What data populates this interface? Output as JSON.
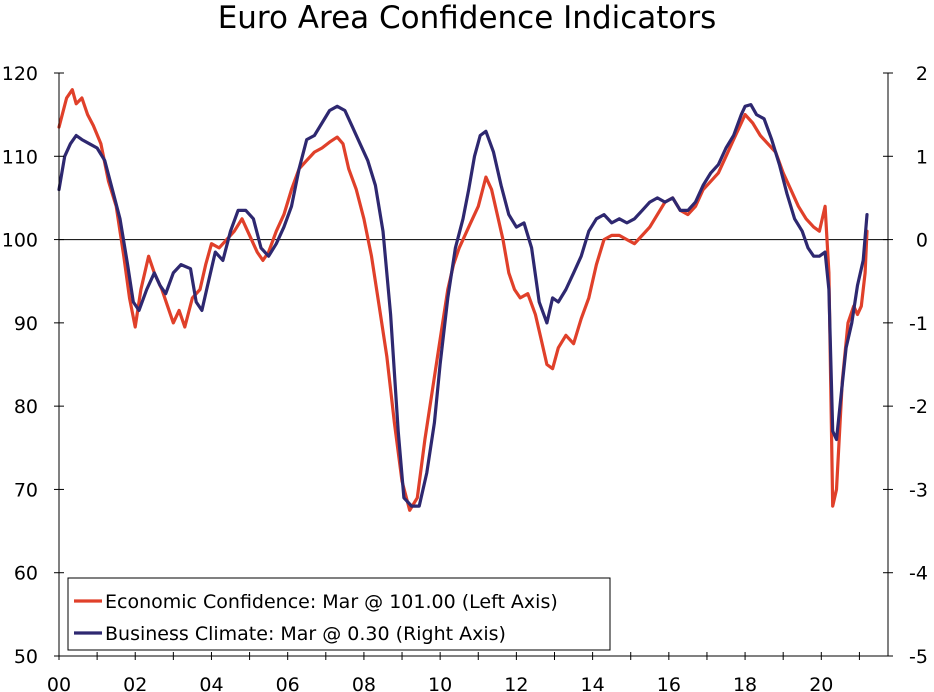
{
  "chart_data": {
    "type": "line",
    "title": "Euro Area Confidence Indicators",
    "xlabel": "",
    "ylabel": "",
    "x_range": [
      2000,
      2021.75
    ],
    "x_ticks": [
      {
        "x": 2000,
        "label": "00"
      },
      {
        "x": 2002,
        "label": "02"
      },
      {
        "x": 2004,
        "label": "04"
      },
      {
        "x": 2006,
        "label": "06"
      },
      {
        "x": 2008,
        "label": "08"
      },
      {
        "x": 2010,
        "label": "10"
      },
      {
        "x": 2012,
        "label": "12"
      },
      {
        "x": 2014,
        "label": "14"
      },
      {
        "x": 2016,
        "label": "16"
      },
      {
        "x": 2018,
        "label": "18"
      },
      {
        "x": 2020,
        "label": "20"
      }
    ],
    "y_left": {
      "range": [
        50,
        120
      ],
      "ticks": [
        "50",
        "60",
        "70",
        "80",
        "90",
        "100",
        "110",
        "120"
      ]
    },
    "y_right": {
      "range": [
        -5,
        2
      ],
      "ticks": [
        "-5",
        "-4",
        "-3",
        "-2",
        "-1",
        "0",
        "1",
        "2"
      ]
    },
    "reference_line": {
      "axis": "left",
      "value": 100
    },
    "legend_position": "bottom-left",
    "series": [
      {
        "name": "Economic Confidence: Mar @ 101.00 (Left Axis)",
        "axis": "left",
        "color": "#E0402A",
        "points": [
          [
            2000.0,
            113.5
          ],
          [
            2000.2,
            117
          ],
          [
            2000.35,
            118
          ],
          [
            2000.45,
            116.3
          ],
          [
            2000.6,
            117
          ],
          [
            2000.75,
            115
          ],
          [
            2000.9,
            113.7
          ],
          [
            2001.1,
            111.5
          ],
          [
            2001.3,
            107
          ],
          [
            2001.5,
            104
          ],
          [
            2001.7,
            98
          ],
          [
            2001.85,
            93
          ],
          [
            2002.0,
            89.5
          ],
          [
            2002.15,
            94
          ],
          [
            2002.35,
            98
          ],
          [
            2002.5,
            96
          ],
          [
            2002.7,
            94
          ],
          [
            2002.85,
            92
          ],
          [
            2003.0,
            90
          ],
          [
            2003.15,
            91.5
          ],
          [
            2003.3,
            89.5
          ],
          [
            2003.5,
            93
          ],
          [
            2003.7,
            94
          ],
          [
            2003.85,
            97
          ],
          [
            2004.0,
            99.5
          ],
          [
            2004.2,
            99
          ],
          [
            2004.4,
            100
          ],
          [
            2004.6,
            101
          ],
          [
            2004.8,
            102.5
          ],
          [
            2005.0,
            100.5
          ],
          [
            2005.2,
            98.5
          ],
          [
            2005.35,
            97.5
          ],
          [
            2005.5,
            98.5
          ],
          [
            2005.7,
            101
          ],
          [
            2005.9,
            103
          ],
          [
            2006.1,
            106
          ],
          [
            2006.3,
            108.5
          ],
          [
            2006.5,
            109.5
          ],
          [
            2006.7,
            110.5
          ],
          [
            2006.9,
            111
          ],
          [
            2007.1,
            111.7
          ],
          [
            2007.3,
            112.3
          ],
          [
            2007.45,
            111.5
          ],
          [
            2007.6,
            108.5
          ],
          [
            2007.8,
            106
          ],
          [
            2008.0,
            102.5
          ],
          [
            2008.2,
            98
          ],
          [
            2008.4,
            92
          ],
          [
            2008.6,
            86
          ],
          [
            2008.8,
            78
          ],
          [
            2009.0,
            71
          ],
          [
            2009.2,
            67.5
          ],
          [
            2009.4,
            69
          ],
          [
            2009.6,
            76
          ],
          [
            2009.8,
            82
          ],
          [
            2010.0,
            88
          ],
          [
            2010.2,
            94
          ],
          [
            2010.35,
            97
          ],
          [
            2010.5,
            99
          ],
          [
            2010.65,
            100.5
          ],
          [
            2010.8,
            102
          ],
          [
            2011.0,
            104
          ],
          [
            2011.2,
            107.5
          ],
          [
            2011.35,
            106
          ],
          [
            2011.5,
            103
          ],
          [
            2011.65,
            100
          ],
          [
            2011.8,
            96
          ],
          [
            2011.95,
            94
          ],
          [
            2012.1,
            93
          ],
          [
            2012.3,
            93.5
          ],
          [
            2012.5,
            91
          ],
          [
            2012.65,
            88
          ],
          [
            2012.8,
            85
          ],
          [
            2012.95,
            84.5
          ],
          [
            2013.1,
            87
          ],
          [
            2013.3,
            88.5
          ],
          [
            2013.5,
            87.5
          ],
          [
            2013.7,
            90.5
          ],
          [
            2013.9,
            93
          ],
          [
            2014.1,
            97
          ],
          [
            2014.3,
            100
          ],
          [
            2014.5,
            100.5
          ],
          [
            2014.7,
            100.5
          ],
          [
            2014.9,
            100
          ],
          [
            2015.1,
            99.5
          ],
          [
            2015.3,
            100.5
          ],
          [
            2015.5,
            101.5
          ],
          [
            2015.7,
            103
          ],
          [
            2015.9,
            104.5
          ],
          [
            2016.1,
            105
          ],
          [
            2016.3,
            103.5
          ],
          [
            2016.5,
            103
          ],
          [
            2016.7,
            104
          ],
          [
            2016.9,
            106
          ],
          [
            2017.1,
            107
          ],
          [
            2017.3,
            108
          ],
          [
            2017.5,
            110
          ],
          [
            2017.7,
            112
          ],
          [
            2017.9,
            114
          ],
          [
            2018.0,
            115
          ],
          [
            2018.2,
            114
          ],
          [
            2018.4,
            112.5
          ],
          [
            2018.6,
            111.5
          ],
          [
            2018.8,
            110.5
          ],
          [
            2019.0,
            108
          ],
          [
            2019.2,
            106
          ],
          [
            2019.4,
            104
          ],
          [
            2019.6,
            102.5
          ],
          [
            2019.8,
            101.5
          ],
          [
            2019.95,
            101
          ],
          [
            2020.1,
            104
          ],
          [
            2020.2,
            96
          ],
          [
            2020.3,
            68
          ],
          [
            2020.4,
            70
          ],
          [
            2020.55,
            83
          ],
          [
            2020.7,
            90
          ],
          [
            2020.85,
            92
          ],
          [
            2020.95,
            91
          ],
          [
            2021.05,
            92
          ],
          [
            2021.15,
            96
          ],
          [
            2021.2,
            101
          ]
        ]
      },
      {
        "name": "Business Climate: Mar @ 0.30 (Right Axis)",
        "axis": "right",
        "color": "#2E2870",
        "points": [
          [
            2000.0,
            0.6
          ],
          [
            2000.15,
            1.0
          ],
          [
            2000.3,
            1.15
          ],
          [
            2000.45,
            1.25
          ],
          [
            2000.6,
            1.2
          ],
          [
            2000.8,
            1.15
          ],
          [
            2001.0,
            1.1
          ],
          [
            2001.2,
            0.95
          ],
          [
            2001.4,
            0.6
          ],
          [
            2001.6,
            0.25
          ],
          [
            2001.8,
            -0.3
          ],
          [
            2001.95,
            -0.75
          ],
          [
            2002.1,
            -0.85
          ],
          [
            2002.3,
            -0.6
          ],
          [
            2002.5,
            -0.4
          ],
          [
            2002.65,
            -0.55
          ],
          [
            2002.8,
            -0.65
          ],
          [
            2003.0,
            -0.4
          ],
          [
            2003.2,
            -0.3
          ],
          [
            2003.45,
            -0.35
          ],
          [
            2003.6,
            -0.75
          ],
          [
            2003.75,
            -0.85
          ],
          [
            2003.9,
            -0.55
          ],
          [
            2004.1,
            -0.15
          ],
          [
            2004.3,
            -0.25
          ],
          [
            2004.5,
            0.1
          ],
          [
            2004.7,
            0.35
          ],
          [
            2004.9,
            0.35
          ],
          [
            2005.1,
            0.25
          ],
          [
            2005.3,
            -0.1
          ],
          [
            2005.5,
            -0.2
          ],
          [
            2005.7,
            -0.05
          ],
          [
            2005.9,
            0.15
          ],
          [
            2006.1,
            0.4
          ],
          [
            2006.3,
            0.85
          ],
          [
            2006.5,
            1.2
          ],
          [
            2006.7,
            1.25
          ],
          [
            2006.9,
            1.4
          ],
          [
            2007.1,
            1.55
          ],
          [
            2007.3,
            1.6
          ],
          [
            2007.5,
            1.55
          ],
          [
            2007.7,
            1.35
          ],
          [
            2007.9,
            1.15
          ],
          [
            2008.1,
            0.95
          ],
          [
            2008.3,
            0.65
          ],
          [
            2008.5,
            0.1
          ],
          [
            2008.7,
            -0.9
          ],
          [
            2008.9,
            -2.3
          ],
          [
            2009.05,
            -3.1
          ],
          [
            2009.25,
            -3.2
          ],
          [
            2009.45,
            -3.2
          ],
          [
            2009.65,
            -2.8
          ],
          [
            2009.85,
            -2.2
          ],
          [
            2010.0,
            -1.5
          ],
          [
            2010.2,
            -0.7
          ],
          [
            2010.4,
            -0.1
          ],
          [
            2010.6,
            0.25
          ],
          [
            2010.75,
            0.6
          ],
          [
            2010.9,
            1.0
          ],
          [
            2011.05,
            1.25
          ],
          [
            2011.2,
            1.3
          ],
          [
            2011.4,
            1.05
          ],
          [
            2011.6,
            0.65
          ],
          [
            2011.8,
            0.3
          ],
          [
            2012.0,
            0.15
          ],
          [
            2012.2,
            0.2
          ],
          [
            2012.4,
            -0.1
          ],
          [
            2012.6,
            -0.75
          ],
          [
            2012.8,
            -1.0
          ],
          [
            2012.95,
            -0.7
          ],
          [
            2013.1,
            -0.75
          ],
          [
            2013.3,
            -0.6
          ],
          [
            2013.5,
            -0.4
          ],
          [
            2013.7,
            -0.2
          ],
          [
            2013.9,
            0.1
          ],
          [
            2014.1,
            0.25
          ],
          [
            2014.3,
            0.3
          ],
          [
            2014.5,
            0.2
          ],
          [
            2014.7,
            0.25
          ],
          [
            2014.9,
            0.2
          ],
          [
            2015.1,
            0.25
          ],
          [
            2015.3,
            0.35
          ],
          [
            2015.5,
            0.45
          ],
          [
            2015.7,
            0.5
          ],
          [
            2015.9,
            0.45
          ],
          [
            2016.1,
            0.5
          ],
          [
            2016.3,
            0.35
          ],
          [
            2016.5,
            0.35
          ],
          [
            2016.7,
            0.45
          ],
          [
            2016.9,
            0.65
          ],
          [
            2017.1,
            0.8
          ],
          [
            2017.3,
            0.9
          ],
          [
            2017.5,
            1.1
          ],
          [
            2017.7,
            1.25
          ],
          [
            2017.9,
            1.5
          ],
          [
            2018.0,
            1.6
          ],
          [
            2018.15,
            1.62
          ],
          [
            2018.3,
            1.5
          ],
          [
            2018.5,
            1.45
          ],
          [
            2018.7,
            1.2
          ],
          [
            2018.9,
            0.9
          ],
          [
            2019.1,
            0.55
          ],
          [
            2019.3,
            0.25
          ],
          [
            2019.5,
            0.1
          ],
          [
            2019.65,
            -0.1
          ],
          [
            2019.8,
            -0.2
          ],
          [
            2019.95,
            -0.2
          ],
          [
            2020.1,
            -0.15
          ],
          [
            2020.2,
            -0.6
          ],
          [
            2020.3,
            -2.3
          ],
          [
            2020.4,
            -2.4
          ],
          [
            2020.5,
            -1.95
          ],
          [
            2020.65,
            -1.3
          ],
          [
            2020.8,
            -1.0
          ],
          [
            2020.95,
            -0.55
          ],
          [
            2021.1,
            -0.25
          ],
          [
            2021.2,
            0.3
          ]
        ]
      }
    ]
  }
}
